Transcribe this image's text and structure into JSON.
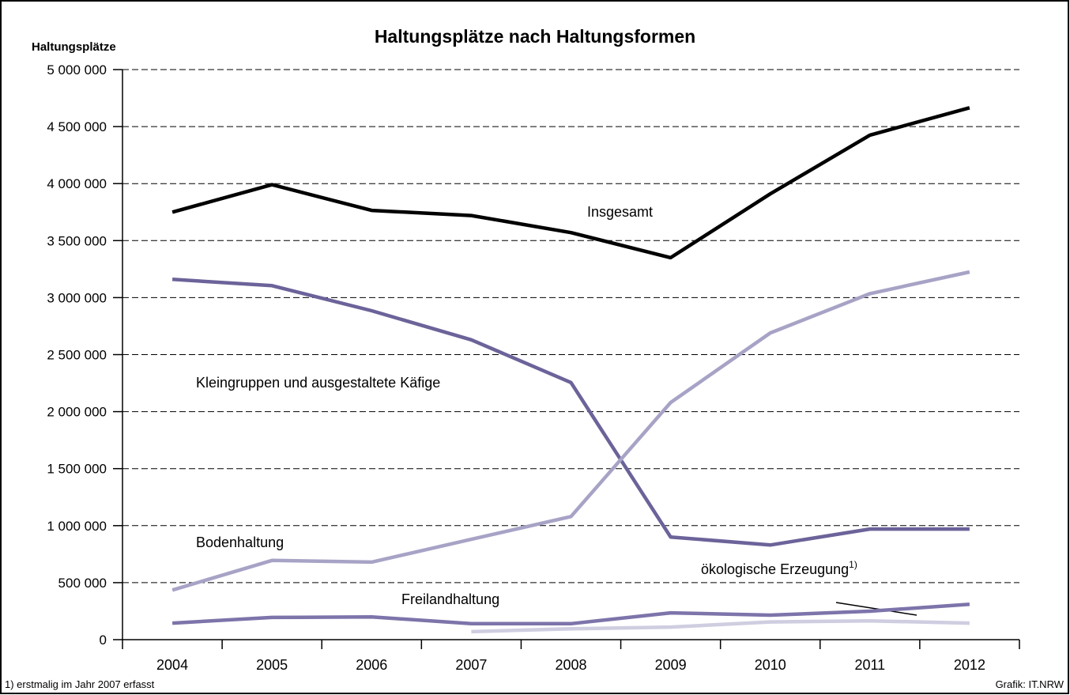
{
  "chart_data": {
    "type": "line",
    "title": "Haltungsplätze nach Haltungsformen",
    "y_label": "Haltungsplätze",
    "footnote": "1) erstmalig im Jahr 2007 erfasst",
    "source": "Grafik: IT.NRW",
    "categories": [
      "2004",
      "2005",
      "2006",
      "2007",
      "2008",
      "2009",
      "2010",
      "2011",
      "2012"
    ],
    "series": [
      {
        "name": "Insgesamt",
        "color": "#000000",
        "values": [
          3750000,
          3990000,
          3765000,
          3720000,
          3570000,
          3350000,
          3910000,
          4425000,
          4665000
        ]
      },
      {
        "name": "Kleingruppen und ausgestaltete Käfige",
        "color": "#6b6399",
        "values": [
          3160000,
          3105000,
          2885000,
          2630000,
          2255000,
          900000,
          830000,
          970000,
          970000
        ]
      },
      {
        "name": "Bodenhaltung",
        "color": "#a7a3c6",
        "values": [
          435000,
          695000,
          680000,
          880000,
          1080000,
          2080000,
          2690000,
          3035000,
          3225000
        ]
      },
      {
        "name": "Freilandhaltung",
        "color": "#7d74aa",
        "values": [
          145000,
          195000,
          200000,
          140000,
          140000,
          235000,
          215000,
          250000,
          310000
        ]
      },
      {
        "name": "ökologische Erzeugung",
        "name_sup": "1)",
        "color": "#cfcde0",
        "values": [
          null,
          null,
          null,
          70000,
          95000,
          110000,
          155000,
          165000,
          145000
        ]
      }
    ],
    "ylim": [
      0,
      5000000
    ],
    "yticks": [
      0,
      {
        "value": 500000,
        "label": "500 000"
      },
      {
        "value": 1000000,
        "label": "1 000 000"
      },
      {
        "value": 1500000,
        "label": "1 500 000"
      },
      {
        "value": 2000000,
        "label": "2 000 000"
      },
      {
        "value": 2500000,
        "label": "2 500 000"
      },
      {
        "value": 3000000,
        "label": "3 000 000"
      },
      {
        "value": 3500000,
        "label": "3 500 000"
      },
      {
        "value": 4000000,
        "label": "4 000 000"
      },
      {
        "value": 4500000,
        "label": "4 500 000"
      },
      {
        "value": 5000000,
        "label": "5 000 000"
      }
    ],
    "grid": true
  }
}
